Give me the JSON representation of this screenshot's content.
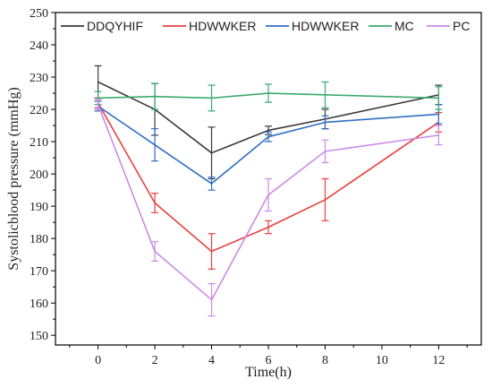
{
  "chart_data": {
    "type": "line",
    "xlabel": "Time(h)",
    "ylabel": "Systolicblood pressure (mmHg)",
    "xlim": [
      -1.5,
      13.5
    ],
    "ylim": [
      147,
      250
    ],
    "x_ticks": [
      0,
      2,
      4,
      6,
      8,
      10,
      12
    ],
    "y_ticks": [
      150,
      160,
      170,
      180,
      190,
      200,
      210,
      220,
      230,
      240,
      250
    ],
    "grid": false,
    "legend_position": "top",
    "series": [
      {
        "name": "DDQYHIF",
        "color": "#3a3a3a",
        "x": [
          0,
          2,
          4,
          6,
          8,
          12
        ],
        "y": [
          228.5,
          220,
          206.5,
          213.5,
          217,
          224.5
        ],
        "err": [
          5,
          8,
          8,
          1.3,
          3,
          3
        ]
      },
      {
        "name": "HDWWKER",
        "color": "#e8403f",
        "x": [
          0,
          2,
          4,
          6,
          8,
          12
        ],
        "y": [
          222,
          191,
          176,
          183.5,
          192,
          216
        ],
        "err": [
          1.5,
          3,
          5.5,
          2,
          6.5,
          3
        ]
      },
      {
        "name": "HDWWKER",
        "color": "#2f6fc4",
        "x": [
          0,
          2,
          4,
          6,
          8,
          12
        ],
        "y": [
          221,
          209,
          197,
          211.5,
          216,
          218.5
        ],
        "err": [
          1.5,
          5,
          2,
          1.5,
          2,
          3
        ]
      },
      {
        "name": "MC",
        "color": "#3aaa72",
        "x": [
          0,
          2,
          4,
          6,
          8,
          12
        ],
        "y": [
          223.5,
          224,
          223.5,
          225,
          224.5,
          223.5
        ],
        "err": [
          2,
          4,
          4,
          2.8,
          4,
          3.5
        ]
      },
      {
        "name": "PC",
        "color": "#c98be6",
        "x": [
          0,
          2,
          4,
          6,
          8,
          12
        ],
        "y": [
          221.5,
          176,
          161,
          193.5,
          207,
          212
        ],
        "err": [
          1.5,
          3,
          5,
          5,
          3.5,
          3
        ]
      }
    ]
  }
}
